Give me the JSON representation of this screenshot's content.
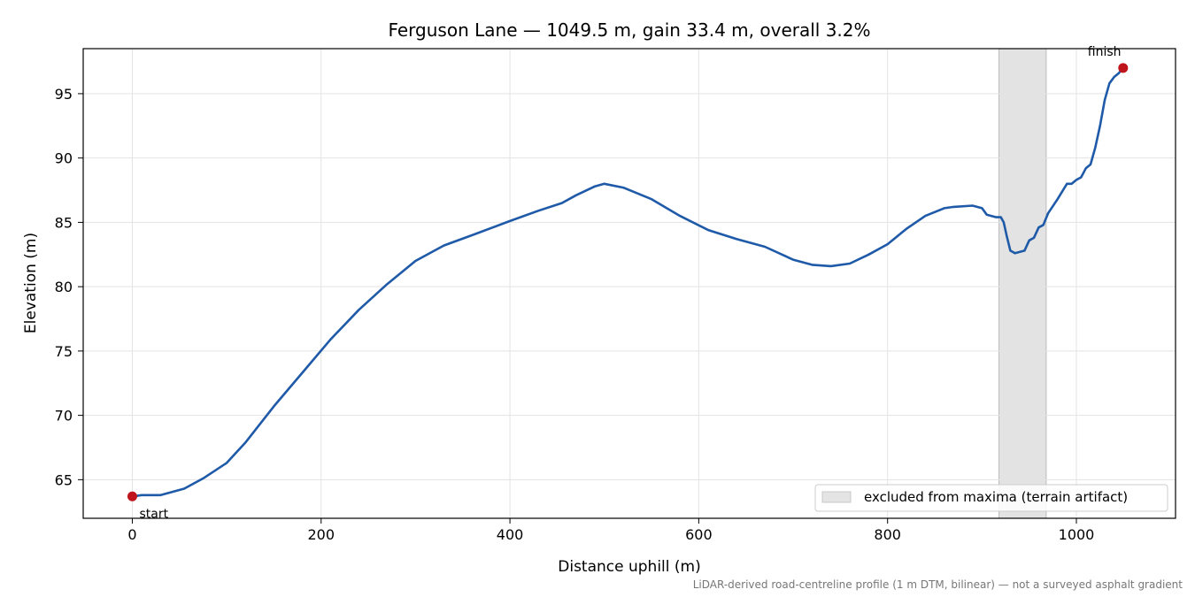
{
  "chart_data": {
    "type": "line",
    "title": "Ferguson Lane — 1049.5 m, gain 33.4 m, overall 3.2%",
    "xlabel": "Distance uphill (m)",
    "ylabel": "Elevation (m)",
    "xlim": [
      -52,
      1105
    ],
    "ylim": [
      62.0,
      98.5
    ],
    "xticks": [
      0,
      200,
      400,
      600,
      800,
      1000
    ],
    "yticks": [
      65,
      70,
      75,
      80,
      85,
      90,
      95
    ],
    "grid": true,
    "series": [
      {
        "color": "#1f5aa8",
        "x": [
          0,
          10,
          30,
          40,
          55,
          75,
          100,
          120,
          150,
          180,
          210,
          240,
          270,
          300,
          330,
          360,
          400,
          430,
          455,
          470,
          490,
          500,
          520,
          550,
          580,
          610,
          640,
          670,
          700,
          720,
          740,
          760,
          780,
          800,
          820,
          840,
          860,
          870,
          890,
          900,
          905,
          915,
          920,
          923,
          926,
          930,
          935,
          945,
          950,
          955,
          960,
          965,
          970,
          980,
          990,
          995,
          1000,
          1005,
          1010,
          1015,
          1020,
          1025,
          1030,
          1035,
          1040,
          1045,
          1049.5
        ],
        "y": [
          63.7,
          63.8,
          63.8,
          64.0,
          64.3,
          65.1,
          66.3,
          67.9,
          70.7,
          73.3,
          75.9,
          78.2,
          80.2,
          82.0,
          83.2,
          84.0,
          85.1,
          85.9,
          86.5,
          87.1,
          87.8,
          88.0,
          87.7,
          86.8,
          85.5,
          84.4,
          83.7,
          83.1,
          82.1,
          81.7,
          81.6,
          81.8,
          82.5,
          83.3,
          84.5,
          85.5,
          86.1,
          86.2,
          86.3,
          86.1,
          85.6,
          85.4,
          85.4,
          85.0,
          84.0,
          82.8,
          82.6,
          82.8,
          83.6,
          83.8,
          84.6,
          84.8,
          85.7,
          86.8,
          88.0,
          88.0,
          88.3,
          88.5,
          89.2,
          89.5,
          90.8,
          92.5,
          94.5,
          95.8,
          96.3,
          96.6,
          97.0
        ]
      }
    ],
    "points": [
      {
        "name": "start",
        "x": 0,
        "y": 63.7,
        "color": "#c0141c"
      },
      {
        "name": "finish",
        "x": 1049.5,
        "y": 97.0,
        "color": "#c0141c"
      }
    ],
    "excluded_band": {
      "x0": 918,
      "x1": 968,
      "color": "#cccccc"
    },
    "legend": {
      "label": "excluded from maxima (terrain artifact)",
      "placement": "lower-right"
    },
    "note": "LiDAR-derived road-centreline profile (1 m DTM, bilinear) — not a surveyed asphalt gradient"
  }
}
